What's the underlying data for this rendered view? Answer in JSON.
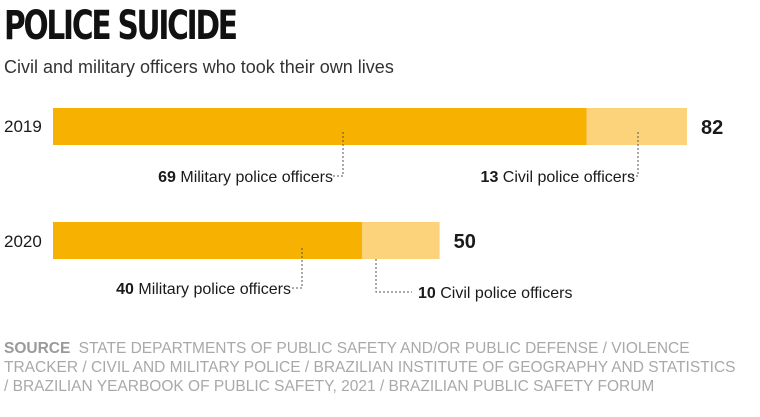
{
  "title": "POLICE SUICIDE",
  "subtitle": "Civil and military officers who took their own lives",
  "source": {
    "label": "SOURCE",
    "text": "State departments of public safety and/or public defense / Violence Tracker / Civil and Military Police / Brazilian Institute of Geography and Statistics / Brazilian Yearbook of Public Safety, 2021 / Brazilian Public Safety Forum"
  },
  "colors": {
    "military": "#f7b100",
    "civil": "#fcd27a",
    "leader": "#555555"
  },
  "chart_data": {
    "type": "bar",
    "orientation": "horizontal",
    "stacked": true,
    "title": "POLICE SUICIDE",
    "categories": [
      "2019",
      "2020"
    ],
    "series": [
      {
        "name": "Military police officers",
        "values": [
          69,
          40
        ]
      },
      {
        "name": "Civil police officers",
        "values": [
          13,
          10
        ]
      }
    ],
    "totals": [
      82,
      50
    ],
    "annotations": [
      {
        "category": "2019",
        "series": "Military police officers",
        "value": "69",
        "text": "Military police officers"
      },
      {
        "category": "2019",
        "series": "Civil police officers",
        "value": "13",
        "text": "Civil police officers"
      },
      {
        "category": "2020",
        "series": "Military police officers",
        "value": "40",
        "text": "Military police officers"
      },
      {
        "category": "2020",
        "series": "Civil police officers",
        "value": "10",
        "text": "Civil police officers"
      }
    ]
  }
}
